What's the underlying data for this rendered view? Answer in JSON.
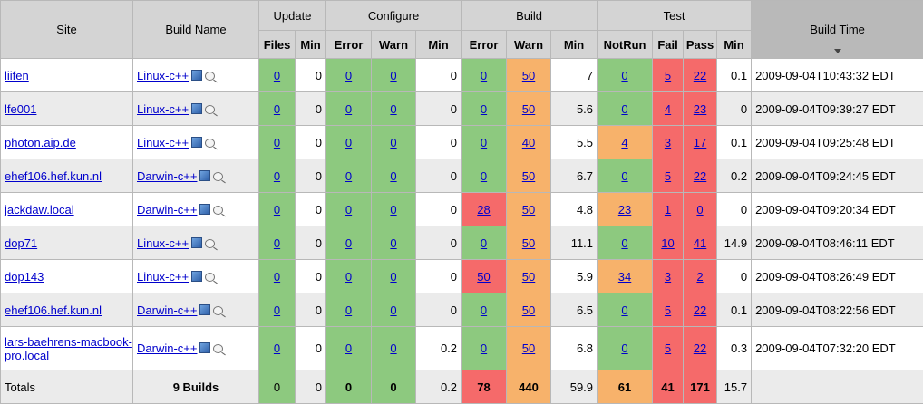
{
  "headers": {
    "site": "Site",
    "build_name": "Build Name",
    "update": "Update",
    "configure": "Configure",
    "build": "Build",
    "test": "Test",
    "build_time": "Build Time",
    "files": "Files",
    "min": "Min",
    "error": "Error",
    "warn": "Warn",
    "notrun": "NotRun",
    "fail": "Fail",
    "pass": "Pass"
  },
  "rows": [
    {
      "site": "liifen",
      "build": "Linux-c++",
      "upd_files": "0",
      "upd_min": "0",
      "cfg_err": "0",
      "cfg_warn": "0",
      "cfg_min": "0",
      "b_err": "0",
      "b_warn": "50",
      "b_min": "7",
      "notrun": "0",
      "fail": "5",
      "pass": "22",
      "t_min": "0.1",
      "time": "2009-09-04T10:43:32 EDT"
    },
    {
      "site": "lfe001",
      "build": "Linux-c++",
      "upd_files": "0",
      "upd_min": "0",
      "cfg_err": "0",
      "cfg_warn": "0",
      "cfg_min": "0",
      "b_err": "0",
      "b_warn": "50",
      "b_min": "5.6",
      "notrun": "0",
      "fail": "4",
      "pass": "23",
      "t_min": "0",
      "time": "2009-09-04T09:39:27 EDT"
    },
    {
      "site": "photon.aip.de",
      "build": "Linux-c++",
      "upd_files": "0",
      "upd_min": "0",
      "cfg_err": "0",
      "cfg_warn": "0",
      "cfg_min": "0",
      "b_err": "0",
      "b_warn": "40",
      "b_min": "5.5",
      "notrun": "4",
      "fail": "3",
      "pass": "17",
      "t_min": "0.1",
      "time": "2009-09-04T09:25:48 EDT"
    },
    {
      "site": "ehef106.hef.kun.nl",
      "build": "Darwin-c++",
      "upd_files": "0",
      "upd_min": "0",
      "cfg_err": "0",
      "cfg_warn": "0",
      "cfg_min": "0",
      "b_err": "0",
      "b_warn": "50",
      "b_min": "6.7",
      "notrun": "0",
      "fail": "5",
      "pass": "22",
      "t_min": "0.2",
      "time": "2009-09-04T09:24:45 EDT"
    },
    {
      "site": "jackdaw.local",
      "build": "Darwin-c++",
      "upd_files": "0",
      "upd_min": "0",
      "cfg_err": "0",
      "cfg_warn": "0",
      "cfg_min": "0",
      "b_err": "28",
      "b_warn": "50",
      "b_min": "4.8",
      "notrun": "23",
      "fail": "1",
      "pass": "0",
      "t_min": "0",
      "time": "2009-09-04T09:20:34 EDT"
    },
    {
      "site": "dop71",
      "build": "Linux-c++",
      "upd_files": "0",
      "upd_min": "0",
      "cfg_err": "0",
      "cfg_warn": "0",
      "cfg_min": "0",
      "b_err": "0",
      "b_warn": "50",
      "b_min": "11.1",
      "notrun": "0",
      "fail": "10",
      "pass": "41",
      "t_min": "14.9",
      "time": "2009-09-04T08:46:11 EDT"
    },
    {
      "site": "dop143",
      "build": "Linux-c++",
      "upd_files": "0",
      "upd_min": "0",
      "cfg_err": "0",
      "cfg_warn": "0",
      "cfg_min": "0",
      "b_err": "50",
      "b_warn": "50",
      "b_min": "5.9",
      "notrun": "34",
      "fail": "3",
      "pass": "2",
      "t_min": "0",
      "time": "2009-09-04T08:26:49 EDT"
    },
    {
      "site": "ehef106.hef.kun.nl",
      "build": "Darwin-c++",
      "upd_files": "0",
      "upd_min": "0",
      "cfg_err": "0",
      "cfg_warn": "0",
      "cfg_min": "0",
      "b_err": "0",
      "b_warn": "50",
      "b_min": "6.5",
      "notrun": "0",
      "fail": "5",
      "pass": "22",
      "t_min": "0.1",
      "time": "2009-09-04T08:22:56 EDT"
    },
    {
      "site": "lars-baehrens-macbook-pro.local",
      "build": "Darwin-c++",
      "upd_files": "0",
      "upd_min": "0",
      "cfg_err": "0",
      "cfg_warn": "0",
      "cfg_min": "0.2",
      "b_err": "0",
      "b_warn": "50",
      "b_min": "6.8",
      "notrun": "0",
      "fail": "5",
      "pass": "22",
      "t_min": "0.3",
      "time": "2009-09-04T07:32:20 EDT"
    }
  ],
  "totals": {
    "label": "Totals",
    "builds": "9 Builds",
    "upd_files": "0",
    "upd_min": "0",
    "cfg_err": "0",
    "cfg_warn": "0",
    "cfg_min": "0.2",
    "b_err": "78",
    "b_warn": "440",
    "b_min": "59.9",
    "notrun": "61",
    "fail": "41",
    "pass": "171",
    "t_min": "15.7"
  },
  "colors": {
    "green": "#8dc97f",
    "orange": "#f7b26b",
    "red": "#f56a6a",
    "header": "#d4d4d4",
    "sorted_header": "#b9b9b9",
    "row_alt": "#ebebeb"
  },
  "icons": {
    "build_details": "build-details-icon",
    "notes": "notes-magnifier-icon",
    "sort": "sort-descending-icon"
  }
}
